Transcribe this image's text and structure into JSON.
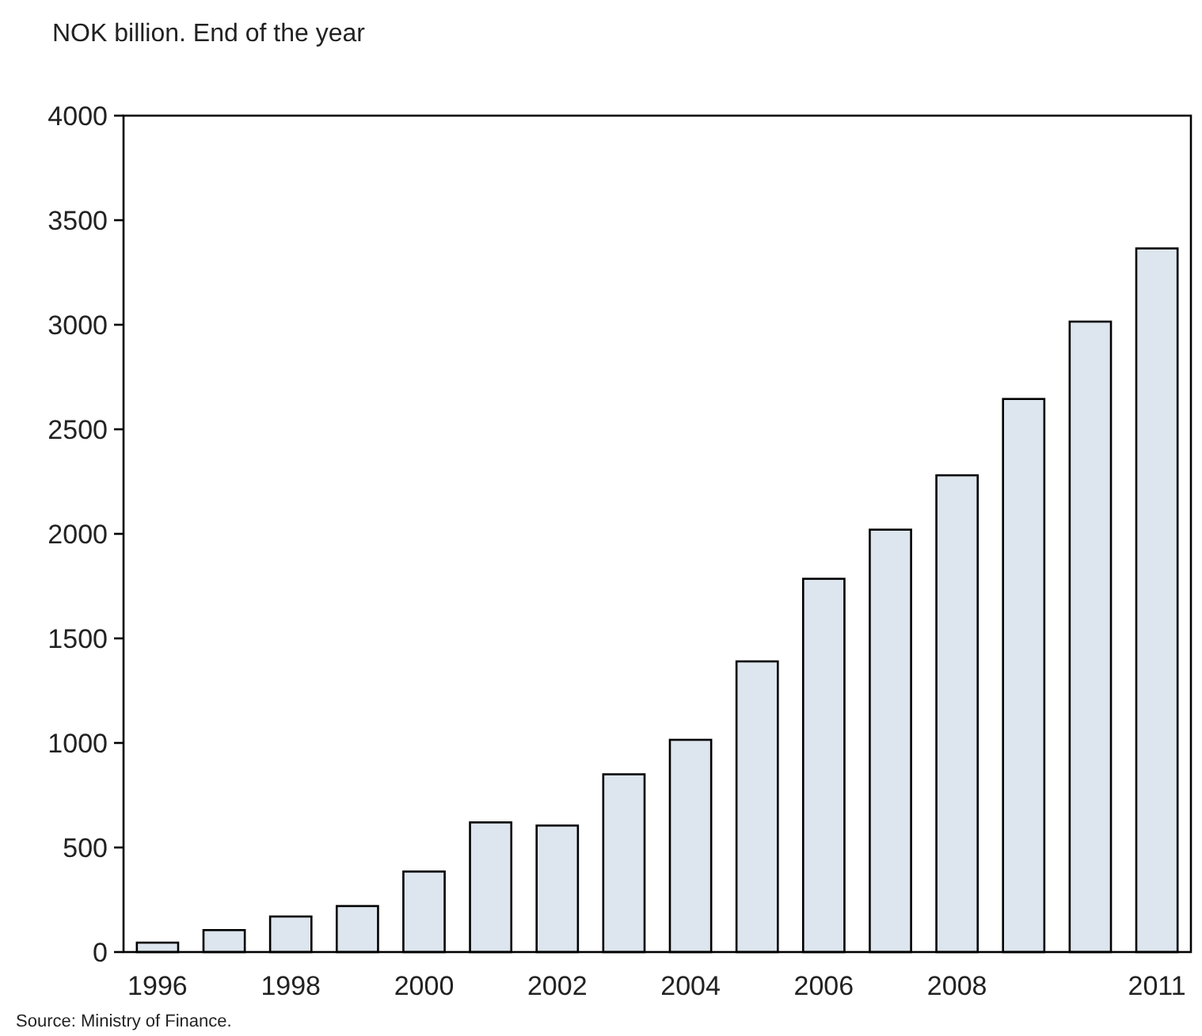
{
  "chart_data": {
    "type": "bar",
    "title": "NOK billion. End of the year",
    "categories": [
      "1996",
      null,
      "1998",
      null,
      "2000",
      null,
      "2002",
      null,
      "2004",
      null,
      "2006",
      null,
      "2008",
      null,
      null,
      "2011"
    ],
    "values": [
      45,
      105,
      170,
      220,
      385,
      620,
      605,
      850,
      1015,
      1390,
      1785,
      2020,
      2280,
      2645,
      3015,
      3365
    ],
    "color": "#dde5ee",
    "ylim": [
      0,
      4000
    ],
    "yticks": [
      0,
      500,
      1000,
      1500,
      2000,
      2500,
      3000,
      3500,
      4000
    ],
    "grid": false,
    "annotations": [
      "Source: Ministry of Finance."
    ]
  }
}
